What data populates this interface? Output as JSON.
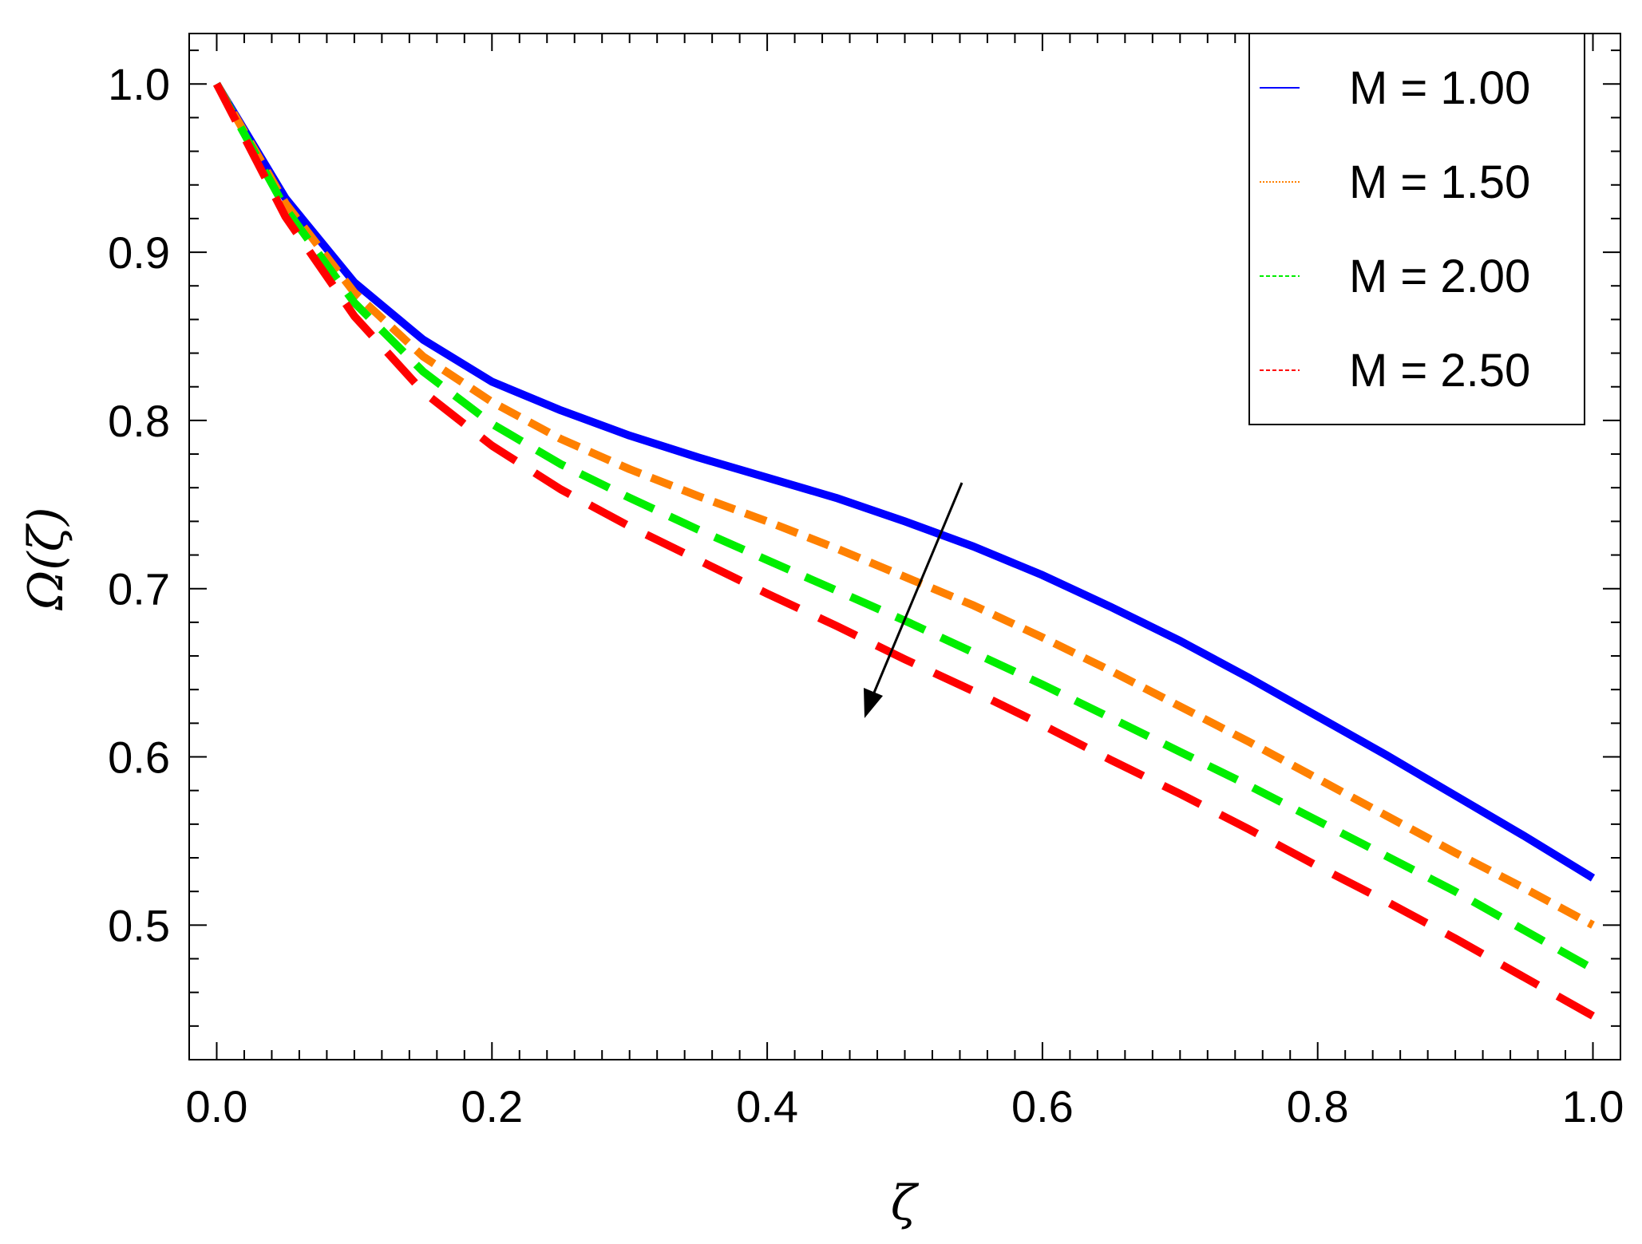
{
  "chart_data": {
    "type": "line",
    "title": "",
    "xlabel": "ζ",
    "ylabel": "Ω(ζ)",
    "xlim": [
      -0.02,
      1.02
    ],
    "ylim": [
      0.42,
      1.03
    ],
    "xticks": [
      0.0,
      0.2,
      0.4,
      0.6,
      0.8,
      1.0
    ],
    "xtick_labels": [
      "0.0",
      "0.2",
      "0.4",
      "0.6",
      "0.8",
      "1.0"
    ],
    "yticks": [
      0.5,
      0.6,
      0.7,
      0.8,
      0.9,
      1.0
    ],
    "ytick_labels": [
      "0.5",
      "0.6",
      "0.7",
      "0.8",
      "0.9",
      "1.0"
    ],
    "grid": false,
    "legend_position": "top-right",
    "annotation": "arrow pointing downward-left indicating decreasing Ω(ζ) with increasing M",
    "x": [
      0.0,
      0.05,
      0.1,
      0.15,
      0.2,
      0.25,
      0.3,
      0.35,
      0.4,
      0.45,
      0.5,
      0.55,
      0.6,
      0.65,
      0.7,
      0.75,
      0.8,
      0.85,
      0.9,
      0.95,
      1.0
    ],
    "series": [
      {
        "name": "M = 1.00",
        "color": "#0000ff",
        "style": "solid",
        "values": [
          1.0,
          0.932,
          0.882,
          0.848,
          0.823,
          0.806,
          0.791,
          0.778,
          0.766,
          0.754,
          0.74,
          0.725,
          0.708,
          0.689,
          0.669,
          0.647,
          0.624,
          0.601,
          0.577,
          0.553,
          0.528
        ]
      },
      {
        "name": "M = 1.50",
        "color": "#ff8000",
        "style": "dotted",
        "values": [
          1.0,
          0.929,
          0.876,
          0.838,
          0.811,
          0.789,
          0.771,
          0.755,
          0.74,
          0.724,
          0.707,
          0.69,
          0.671,
          0.651,
          0.63,
          0.609,
          0.587,
          0.565,
          0.543,
          0.522,
          0.5
        ]
      },
      {
        "name": "M = 2.00",
        "color": "#00ee00",
        "style": "dashed",
        "values": [
          1.0,
          0.926,
          0.87,
          0.829,
          0.798,
          0.774,
          0.754,
          0.735,
          0.717,
          0.699,
          0.681,
          0.662,
          0.643,
          0.623,
          0.603,
          0.583,
          0.562,
          0.541,
          0.52,
          0.497,
          0.474
        ]
      },
      {
        "name": "M = 2.50",
        "color": "#ff0000",
        "style": "dashed",
        "values": [
          1.0,
          0.921,
          0.862,
          0.817,
          0.785,
          0.759,
          0.737,
          0.717,
          0.697,
          0.678,
          0.658,
          0.639,
          0.619,
          0.598,
          0.578,
          0.557,
          0.535,
          0.514,
          0.492,
          0.469,
          0.446
        ]
      }
    ]
  }
}
